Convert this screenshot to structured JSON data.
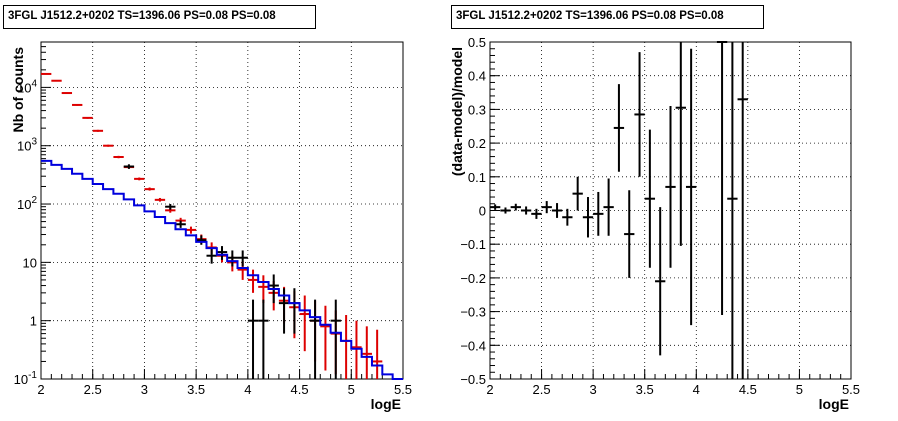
{
  "chart_data": [
    {
      "type": "line",
      "title": "3FGL J1512.2+0202 TS=1396.06 PS=0.08 PS=0.08",
      "xlabel": "logE",
      "ylabel": "Nb of counts",
      "yscale": "log",
      "xlim": [
        2,
        5.5
      ],
      "ylim": [
        0.1,
        60000
      ],
      "grid": true,
      "x_ticks": [
        "2",
        "2.5",
        "3",
        "3.5",
        "4",
        "4.5",
        "5",
        "5.5"
      ],
      "y_ticks": [
        "10^-1",
        "1",
        "10",
        "10^2",
        "10^3",
        "10^4"
      ],
      "series": [
        {
          "color": "#dd0000",
          "style": "errorbar",
          "points": [
            {
              "x": 2.05,
              "y": 17000,
              "lo": 16700,
              "hi": 17300
            },
            {
              "x": 2.15,
              "y": 13000,
              "lo": 12750,
              "hi": 13250
            },
            {
              "x": 2.25,
              "y": 8000,
              "lo": 7800,
              "hi": 8200
            },
            {
              "x": 2.35,
              "y": 5000,
              "lo": 4850,
              "hi": 5150
            },
            {
              "x": 2.45,
              "y": 3000,
              "lo": 2900,
              "hi": 3100
            },
            {
              "x": 2.55,
              "y": 1800,
              "lo": 1730,
              "hi": 1870
            },
            {
              "x": 2.65,
              "y": 1000,
              "lo": 960,
              "hi": 1040
            },
            {
              "x": 2.75,
              "y": 640,
              "lo": 610,
              "hi": 670
            },
            {
              "x": 2.85,
              "y": 430,
              "lo": 410,
              "hi": 450
            },
            {
              "x": 2.95,
              "y": 270,
              "lo": 255,
              "hi": 285
            },
            {
              "x": 3.05,
              "y": 180,
              "lo": 170,
              "hi": 192
            },
            {
              "x": 3.15,
              "y": 118,
              "lo": 110,
              "hi": 127
            },
            {
              "x": 3.25,
              "y": 78,
              "lo": 71,
              "hi": 85
            },
            {
              "x": 3.35,
              "y": 52,
              "lo": 47,
              "hi": 58
            },
            {
              "x": 3.45,
              "y": 36,
              "lo": 31,
              "hi": 41
            },
            {
              "x": 3.55,
              "y": 25,
              "lo": 21,
              "hi": 30
            },
            {
              "x": 3.65,
              "y": 18,
              "lo": 14,
              "hi": 22
            },
            {
              "x": 3.75,
              "y": 13,
              "lo": 10,
              "hi": 17
            },
            {
              "x": 3.85,
              "y": 10,
              "lo": 7,
              "hi": 13
            },
            {
              "x": 3.95,
              "y": 7.5,
              "lo": 5,
              "hi": 10.5
            },
            {
              "x": 4.05,
              "y": 5,
              "lo": 3,
              "hi": 7.5
            },
            {
              "x": 4.15,
              "y": 3.8,
              "lo": 2,
              "hi": 6
            },
            {
              "x": 4.25,
              "y": 3,
              "lo": 1.5,
              "hi": 4.8
            },
            {
              "x": 4.35,
              "y": 2.2,
              "lo": 0.9,
              "hi": 3.8
            },
            {
              "x": 4.45,
              "y": 1.7,
              "lo": 0.5,
              "hi": 3.2
            },
            {
              "x": 4.55,
              "y": 1.3,
              "lo": 0.3,
              "hi": 2.7
            },
            {
              "x": 4.65,
              "y": 1.0,
              "lo": 0.2,
              "hi": 2.2
            },
            {
              "x": 4.75,
              "y": 0.8,
              "lo": 0.14,
              "hi": 1.8
            },
            {
              "x": 4.85,
              "y": 0.6,
              "lo": 0.12,
              "hi": 1.5
            },
            {
              "x": 4.95,
              "y": 0.45,
              "lo": 0.1,
              "hi": 1.25
            },
            {
              "x": 5.05,
              "y": 0.35,
              "lo": 0.1,
              "hi": 1.0
            },
            {
              "x": 5.15,
              "y": 0.27,
              "lo": 0.1,
              "hi": 0.8
            },
            {
              "x": 5.25,
              "y": 0.2,
              "lo": 0.1,
              "hi": 0.7
            }
          ]
        },
        {
          "color": "#000000",
          "style": "errorbar",
          "points": [
            {
              "x": 2.85,
              "y": 440,
              "lo": 400,
              "hi": 480
            },
            {
              "x": 3.25,
              "y": 90,
              "lo": 80,
              "hi": 100
            },
            {
              "x": 3.35,
              "y": 45,
              "lo": 39,
              "hi": 52
            },
            {
              "x": 3.55,
              "y": 24,
              "lo": 20,
              "hi": 29
            },
            {
              "x": 3.65,
              "y": 13,
              "lo": 9.5,
              "hi": 17
            },
            {
              "x": 3.75,
              "y": 15,
              "lo": 11,
              "hi": 19
            },
            {
              "x": 3.85,
              "y": 12,
              "lo": 8.5,
              "hi": 16
            },
            {
              "x": 3.95,
              "y": 12,
              "lo": 8.5,
              "hi": 16
            },
            {
              "x": 4.05,
              "y": 1,
              "lo": 0.1,
              "hi": 2.3
            },
            {
              "x": 4.15,
              "y": 1,
              "lo": 0.1,
              "hi": 2.3
            },
            {
              "x": 4.25,
              "y": 4,
              "lo": 2,
              "hi": 6.2
            },
            {
              "x": 4.35,
              "y": 2,
              "lo": 0.6,
              "hi": 3.6
            },
            {
              "x": 4.45,
              "y": 2,
              "lo": 0.6,
              "hi": 3.6
            },
            {
              "x": 4.65,
              "y": 1,
              "lo": 0.1,
              "hi": 2.3
            },
            {
              "x": 4.85,
              "y": 1,
              "lo": 0.1,
              "hi": 2.3
            }
          ]
        },
        {
          "color": "#0000dd",
          "style": "step",
          "bin_width": 0.1,
          "bin_lefts": [
            2.0,
            2.1,
            2.2,
            2.3,
            2.4,
            2.5,
            2.6,
            2.7,
            2.8,
            2.9,
            3.0,
            3.1,
            3.2,
            3.3,
            3.4,
            3.5,
            3.6,
            3.7,
            3.8,
            3.9,
            4.0,
            4.1,
            4.2,
            4.3,
            4.4,
            4.5,
            4.6,
            4.7,
            4.8,
            4.9,
            5.0,
            5.1,
            5.2,
            5.3,
            5.4
          ],
          "values": [
            550,
            470,
            400,
            330,
            270,
            220,
            180,
            150,
            120,
            95,
            75,
            60,
            47,
            37,
            29,
            22.5,
            17.5,
            13.5,
            10.5,
            8,
            6,
            4.6,
            3.5,
            2.7,
            2.0,
            1.5,
            1.15,
            0.85,
            0.62,
            0.45,
            0.33,
            0.24,
            0.17,
            0.12,
            0.09
          ]
        }
      ]
    },
    {
      "type": "scatter",
      "title": "3FGL J1512.2+0202 TS=1396.06 PS=0.08 PS=0.08",
      "xlabel": "logE",
      "ylabel": "(data-model)/model",
      "xlim": [
        2,
        5.5
      ],
      "ylim": [
        -0.5,
        0.5
      ],
      "grid": true,
      "x_ticks": [
        "2",
        "2.5",
        "3",
        "3.5",
        "4",
        "4.5",
        "5",
        "5.5"
      ],
      "y_ticks": [
        "-0.5",
        "-0.4",
        "-0.3",
        "-0.2",
        "-0.1",
        "0",
        "0.1",
        "0.2",
        "0.3",
        "0.4",
        "0.5"
      ],
      "series": [
        {
          "color": "#000000",
          "style": "errorbar",
          "points": [
            {
              "x": 2.05,
              "y": 0.01,
              "err": 0.008
            },
            {
              "x": 2.15,
              "y": 0.0,
              "err": 0.009
            },
            {
              "x": 2.25,
              "y": 0.01,
              "err": 0.01
            },
            {
              "x": 2.35,
              "y": 0.0,
              "err": 0.012
            },
            {
              "x": 2.45,
              "y": -0.01,
              "err": 0.015
            },
            {
              "x": 2.55,
              "y": 0.01,
              "err": 0.018
            },
            {
              "x": 2.65,
              "y": 0.0,
              "err": 0.022
            },
            {
              "x": 2.75,
              "y": -0.02,
              "err": 0.025
            },
            {
              "x": 2.85,
              "y": 0.05,
              "err": 0.05
            },
            {
              "x": 2.95,
              "y": -0.02,
              "err": 0.06
            },
            {
              "x": 3.05,
              "y": -0.01,
              "err": 0.065
            },
            {
              "x": 3.15,
              "y": 0.01,
              "err": 0.085
            },
            {
              "x": 3.25,
              "y": 0.245,
              "err": 0.13
            },
            {
              "x": 3.35,
              "y": -0.07,
              "err": 0.13
            },
            {
              "x": 3.45,
              "y": 0.285,
              "err": 0.185
            },
            {
              "x": 3.55,
              "y": 0.035,
              "err": 0.205
            },
            {
              "x": 3.65,
              "y": -0.21,
              "err": 0.22
            },
            {
              "x": 3.75,
              "y": 0.07,
              "err": 0.24
            },
            {
              "x": 3.85,
              "y": 0.305,
              "err": 0.41
            },
            {
              "x": 3.95,
              "y": 0.07,
              "err": 0.41
            },
            {
              "x": 4.25,
              "y": 0.5,
              "err": 0.81
            },
            {
              "x": 4.35,
              "y": 0.035,
              "err": 0.6
            },
            {
              "x": 4.45,
              "y": 0.33,
              "err": 0.9
            }
          ]
        }
      ]
    }
  ]
}
